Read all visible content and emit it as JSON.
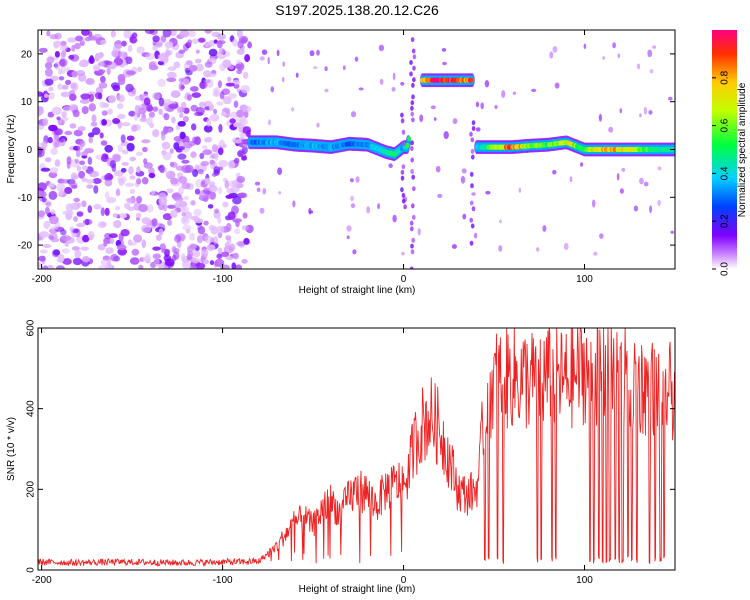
{
  "chart_data": [
    {
      "type": "heatmap",
      "title": "S197.2025.138.20.12.C26",
      "xlabel": "Height of straight line (km)",
      "ylabel": "Frequency (Hz)",
      "xlim": [
        -202,
        150
      ],
      "ylim": [
        -25,
        25
      ],
      "x_ticks": [
        -200,
        -100,
        0,
        100
      ],
      "y_ticks": [
        20,
        10,
        0,
        -10,
        -20
      ],
      "colorbar": {
        "label": "Normalized spectral amplitude",
        "range": [
          0,
          1
        ],
        "ticks": [
          "0.0",
          "0.2",
          "0.4",
          "0.6",
          "0.8"
        ],
        "colormap": "rainbow"
      },
      "noise_region_x": [
        -202,
        -85
      ],
      "ridge": {
        "x": [
          -85,
          -70,
          -60,
          -50,
          -40,
          -30,
          -20,
          -10,
          -5,
          0,
          2,
          10,
          20,
          30,
          38,
          40,
          50,
          60,
          70,
          80,
          90,
          100,
          110,
          120,
          130,
          140,
          150
        ],
        "y": [
          1.5,
          1.5,
          1.0,
          0.8,
          0.5,
          1.2,
          1.0,
          -0.5,
          -1.0,
          0.5,
          0.5,
          14.5,
          14.5,
          14.5,
          14.5,
          0.5,
          0.5,
          0.5,
          0.8,
          1.0,
          1.5,
          0.0,
          0.0,
          0.0,
          0.0,
          0.0,
          0.0
        ],
        "amplitude": [
          0.3,
          0.35,
          0.3,
          0.35,
          0.35,
          0.3,
          0.35,
          0.45,
          0.5,
          0.35,
          0.5,
          0.85,
          0.95,
          0.95,
          0.85,
          0.35,
          0.6,
          0.9,
          0.6,
          0.55,
          0.7,
          0.5,
          0.8,
          0.75,
          0.6,
          0.5,
          0.45
        ]
      }
    },
    {
      "type": "line",
      "xlabel": "Height of straight line (km)",
      "ylabel": "SNR (10 * v/v)",
      "xlim": [
        -202,
        150
      ],
      "ylim": [
        0,
        600
      ],
      "x_ticks": [
        -200,
        -100,
        0,
        100
      ],
      "y_ticks": [
        0,
        200,
        400,
        600
      ],
      "series": [
        {
          "color": "#ee2222",
          "x": [
            -202,
            -180,
            -160,
            -140,
            -120,
            -100,
            -90,
            -80,
            -75,
            -70,
            -65,
            -60,
            -55,
            -50,
            -45,
            -40,
            -35,
            -30,
            -25,
            -20,
            -15,
            -10,
            -5,
            0,
            3,
            5,
            10,
            15,
            20,
            25,
            30,
            35,
            40,
            42,
            45,
            50,
            60,
            70,
            80,
            90,
            100,
            110,
            120,
            130,
            140,
            150
          ],
          "y": [
            20,
            18,
            20,
            19,
            18,
            20,
            20,
            22,
            40,
            60,
            90,
            120,
            130,
            110,
            150,
            170,
            140,
            180,
            200,
            190,
            160,
            200,
            210,
            220,
            240,
            300,
            360,
            380,
            350,
            280,
            200,
            185,
            200,
            250,
            420,
            470,
            480,
            470,
            480,
            470,
            500,
            490,
            480,
            460,
            450,
            440
          ]
        }
      ],
      "dropouts_x": [
        45,
        47,
        52,
        55,
        74,
        76,
        82,
        84,
        103,
        105,
        108,
        110,
        112,
        114,
        117,
        119,
        121,
        124,
        126,
        129,
        136,
        139,
        142,
        144
      ]
    }
  ]
}
